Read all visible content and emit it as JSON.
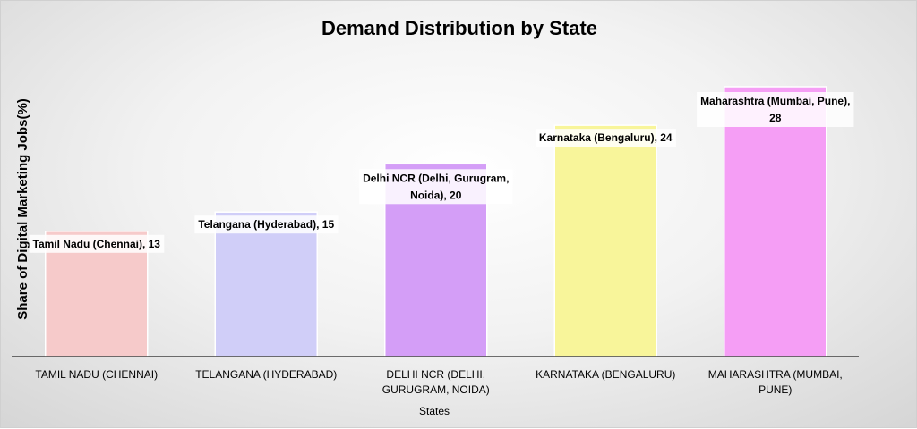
{
  "chart_data": {
    "type": "bar",
    "title": "Demand Distribution by State",
    "xlabel": "States",
    "ylabel": "Share of Digital Marketing Jobs(%)",
    "categories": [
      [
        "TAMIL NADU (CHENNAI)"
      ],
      [
        "TELANGANA (HYDERABAD)"
      ],
      [
        "DELHI NCR (DELHI,",
        "GURUGRAM, NOIDA)"
      ],
      [
        "KARNATAKA (BENGALURU)"
      ],
      [
        "MAHARASHTRA (MUMBAI,",
        "PUNE)"
      ]
    ],
    "values": [
      13,
      15,
      20,
      24,
      28
    ],
    "data_labels": [
      [
        "Tamil Nadu (Chennai), 13"
      ],
      [
        "Telangana (Hyderabad), 15"
      ],
      [
        "Delhi NCR (Delhi, Gurugram,",
        "Noida), 20"
      ],
      [
        "Karnataka (Bengaluru), 24"
      ],
      [
        "Maharashtra (Mumbai, Pune),",
        "28"
      ]
    ],
    "colors": [
      "#f6caca",
      "#d0cef8",
      "#d49ef7",
      "#f8f59a",
      "#f59ef5"
    ],
    "ylim": [
      0,
      30
    ],
    "grid": false,
    "legend": "none"
  }
}
